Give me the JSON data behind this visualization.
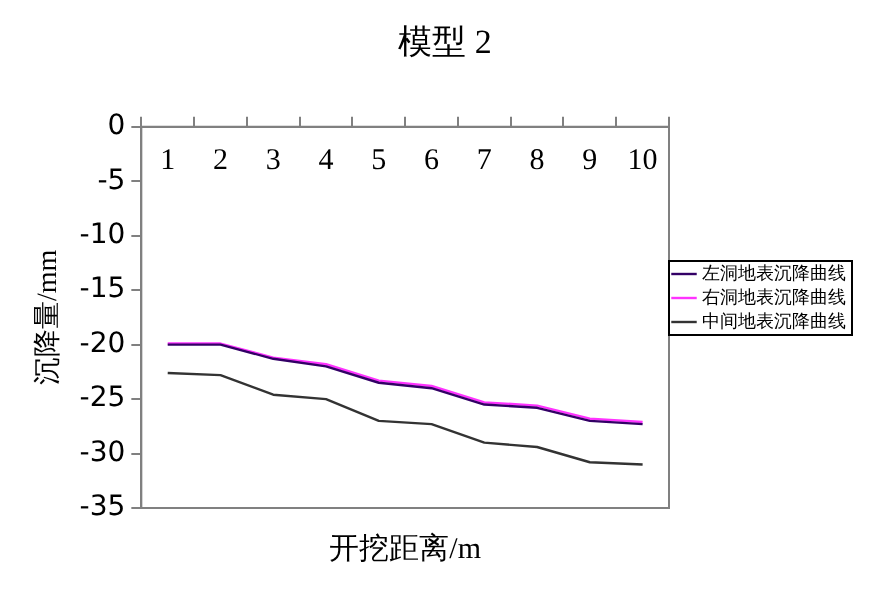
{
  "chart_data": {
    "type": "line",
    "title": "模型 2",
    "xlabel": "开挖距离/m",
    "ylabel": "沉降量/mm",
    "categories": [
      "1",
      "2",
      "3",
      "4",
      "5",
      "6",
      "7",
      "8",
      "9",
      "10"
    ],
    "series": [
      {
        "name": "左洞地表沉降曲线",
        "color": "#330066",
        "values": [
          -20,
          -20,
          -21.3,
          -22,
          -23.5,
          -24,
          -25.5,
          -25.8,
          -27,
          -27.3
        ]
      },
      {
        "name": "右洞地表沉降曲线",
        "color": "#ff33ff",
        "values": [
          -19.9,
          -19.9,
          -21.2,
          -21.8,
          -23.3,
          -23.8,
          -25.3,
          -25.6,
          -26.8,
          -27.1
        ]
      },
      {
        "name": "中间地表沉降曲线",
        "color": "#333333",
        "values": [
          -22.6,
          -22.8,
          -24.6,
          -25,
          -27,
          -27.3,
          -29,
          -29.4,
          -30.8,
          -31
        ]
      }
    ],
    "ylim": [
      -35,
      0
    ],
    "yticks": [
      0,
      -5,
      -10,
      -15,
      -20,
      -25,
      -30,
      -35
    ],
    "grid": false,
    "legend": "right",
    "marker": "none",
    "line_style": "solid"
  }
}
